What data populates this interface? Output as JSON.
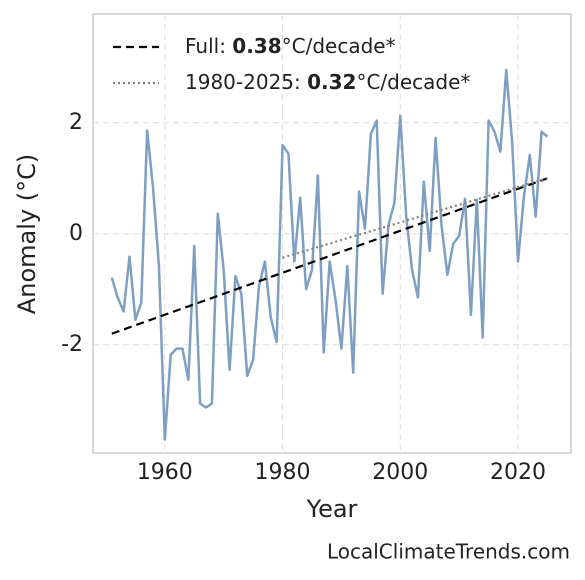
{
  "chart_data": {
    "type": "line",
    "xlabel": "Year",
    "ylabel": "Anomaly (°C)",
    "xlim": [
      1947.8,
      2029
    ],
    "ylim": [
      -3.95,
      3.96
    ],
    "xticks": [
      1960,
      1980,
      2000,
      2020
    ],
    "yticks": [
      -2,
      0,
      2
    ],
    "grid": true,
    "legend": "upper left",
    "x": [
      1951,
      1952,
      1953,
      1954,
      1955,
      1956,
      1957,
      1958,
      1959,
      1960,
      1961,
      1962,
      1963,
      1964,
      1965,
      1966,
      1967,
      1968,
      1969,
      1970,
      1971,
      1972,
      1973,
      1974,
      1975,
      1976,
      1977,
      1978,
      1979,
      1980,
      1981,
      1982,
      1983,
      1984,
      1985,
      1986,
      1987,
      1988,
      1989,
      1990,
      1991,
      1992,
      1993,
      1994,
      1995,
      1996,
      1997,
      1998,
      1999,
      2000,
      2001,
      2002,
      2003,
      2004,
      2005,
      2006,
      2007,
      2008,
      2009,
      2010,
      2011,
      2012,
      2013,
      2014,
      2015,
      2016,
      2017,
      2018,
      2019,
      2020,
      2021,
      2022,
      2023,
      2024,
      2025
    ],
    "series": [
      {
        "color": "#7f9fc2",
        "values": [
          -0.79,
          -1.15,
          -1.4,
          -0.41,
          -1.55,
          -1.24,
          1.86,
          0.83,
          -0.58,
          -3.71,
          -2.18,
          -2.07,
          -2.07,
          -2.63,
          -0.22,
          -3.06,
          -3.13,
          -3.06,
          0.36,
          -0.65,
          -2.45,
          -0.76,
          -1.08,
          -2.56,
          -2.27,
          -0.94,
          -0.5,
          -1.51,
          -1.95,
          1.6,
          1.44,
          -0.5,
          0.65,
          -1.0,
          -0.65,
          1.05,
          -2.14,
          -0.5,
          -1.19,
          -2.07,
          -0.58,
          -2.5,
          0.76,
          0.09,
          1.8,
          2.04,
          -1.08,
          0.16,
          0.56,
          2.13,
          0.32,
          -0.65,
          -1.15,
          0.94,
          -0.31,
          1.73,
          0.16,
          -0.74,
          -0.18,
          -0.04,
          0.63,
          -1.46,
          0.61,
          -1.87,
          2.04,
          1.84,
          1.48,
          2.95,
          1.66,
          -0.5,
          0.67,
          1.42,
          0.31,
          1.84,
          1.75
        ]
      }
    ],
    "trends": [
      {
        "label_parts": [
          "Full: ",
          "0.38",
          "°C/decade*"
        ],
        "color": "#000000",
        "dash": "dashed",
        "x": [
          1951,
          2025
        ],
        "values": [
          -1.8,
          1.0
        ]
      },
      {
        "label_parts": [
          "1980-2025: ",
          "0.32",
          "°C/decade*"
        ],
        "color": "#808080",
        "dash": "dotted",
        "x": [
          1980,
          2025
        ],
        "values": [
          -0.43,
          1.0
        ]
      }
    ],
    "watermark": "LocalClimateTrends.com"
  }
}
